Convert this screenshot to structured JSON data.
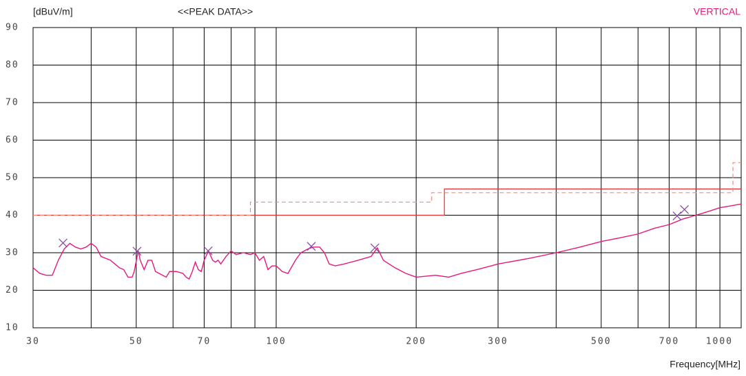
{
  "chart_data": {
    "type": "line",
    "title": "<<PEAK DATA>>",
    "y_label": "[dBuV/m]",
    "x_label": "Frequency[MHz]",
    "annotation": "VERTICAL",
    "xscale": "log",
    "grid": true,
    "xlim": [
      30,
      1000
    ],
    "ylim": [
      10,
      90
    ],
    "xticks": [
      30,
      50,
      70,
      100,
      200,
      300,
      500,
      700,
      1000
    ],
    "xminor": [
      40,
      60,
      80,
      90,
      400,
      600,
      800,
      900
    ],
    "yticks": [
      10,
      20,
      30,
      40,
      50,
      60,
      70,
      80,
      90
    ],
    "series": [
      {
        "style": "solid",
        "color": "#e8177a",
        "x": [
          30,
          31,
          32,
          33,
          34,
          35,
          36,
          37,
          38,
          39,
          40,
          41,
          42,
          44,
          46,
          47,
          48,
          49,
          49.5,
          50.5,
          51,
          52,
          53,
          54,
          55,
          57,
          58,
          59,
          61,
          63,
          64,
          65,
          66,
          67,
          68,
          69,
          70,
          71.5,
          73,
          74,
          75,
          76,
          78,
          80,
          82,
          85,
          88,
          90,
          92,
          94,
          96,
          98,
          100,
          103,
          106,
          110,
          113,
          117,
          120,
          124,
          127,
          130,
          134,
          140,
          150,
          160,
          165,
          170,
          180,
          190,
          200,
          220,
          235,
          250,
          270,
          290,
          300,
          350,
          400,
          450,
          500,
          550,
          600,
          650,
          700,
          750,
          800,
          850,
          900,
          950,
          1000
        ],
        "values": [
          26,
          24.5,
          24,
          24,
          28,
          31,
          32.5,
          31.5,
          31,
          31.5,
          32.5,
          31.5,
          29,
          28,
          26,
          25.5,
          23.5,
          23.5,
          25,
          30.5,
          28,
          25.5,
          28,
          28,
          25,
          24,
          23.5,
          25,
          25,
          24.5,
          23.5,
          23,
          25,
          27.5,
          25.5,
          25,
          28,
          30.5,
          28,
          27.5,
          28,
          27,
          29,
          30.5,
          29.5,
          30,
          29.5,
          30,
          28,
          29,
          25.5,
          26.5,
          26.5,
          25,
          24.5,
          28,
          30,
          31,
          31.5,
          31.5,
          30,
          27,
          26.5,
          27,
          28,
          29,
          31.3,
          28,
          26,
          24.5,
          23.5,
          24,
          23.5,
          24.5,
          25.5,
          26.5,
          27,
          28.5,
          30,
          31.5,
          33,
          34,
          35,
          36.5,
          37.5,
          39,
          40,
          41,
          42,
          42.5,
          43
        ]
      },
      {
        "style": "solid",
        "color": "#e03030",
        "x": [
          30,
          230,
          230,
          1000
        ],
        "values": [
          40,
          40,
          47,
          47
        ]
      },
      {
        "style": "dashed",
        "color": "#f08a80",
        "x": [
          30,
          88,
          88,
          216,
          216,
          960,
          960,
          1000
        ],
        "values": [
          40,
          40,
          43.5,
          43.5,
          46,
          46,
          54,
          54
        ]
      },
      {
        "style": "marker",
        "color": "#8a4aa8",
        "x": [
          34.8,
          50.2,
          71.4,
          119,
          163,
          728,
          755
        ],
        "values": [
          32.6,
          30.4,
          30.5,
          31.7,
          31.3,
          39.8,
          41.5
        ]
      }
    ]
  }
}
